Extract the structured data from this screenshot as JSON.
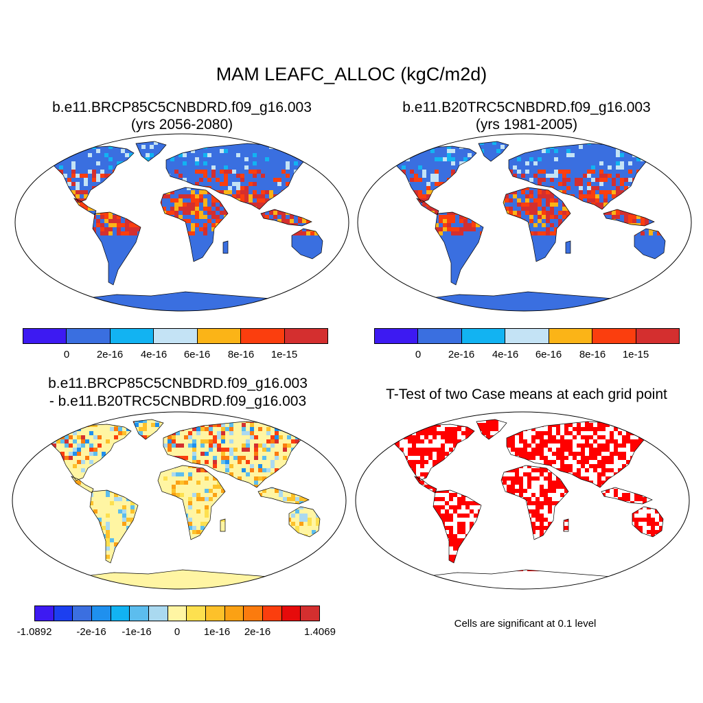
{
  "figure": {
    "title": "MAM LEAFC_ALLOC (kgC/m2d)"
  },
  "panels": {
    "top_left": {
      "title_line1": "b.e11.BRCP85C5CNBDRD.f09_g16.003",
      "title_line2": "(yrs 2056-2080)"
    },
    "top_right": {
      "title_line1": "b.e11.B20TRC5CNBDRD.f09_g16.003",
      "title_line2": "(yrs 1981-2005)"
    },
    "bottom_left": {
      "title_line1": "b.e11.BRCP85C5CNBDRD.f09_g16.003",
      "title_line2": "- b.e11.B20TRC5CNBDRD.f09_g16.003"
    },
    "bottom_right": {
      "title": "T-Test of two Case means at each grid point",
      "note": "Cells are significant at 0.1 level"
    }
  },
  "colorbars": {
    "absolute": {
      "colors": [
        "#3d1af2",
        "#3a6fe0",
        "#12b3f2",
        "#c4e3f5",
        "#fbb417",
        "#fb3e0e",
        "#d42f2f"
      ],
      "labels": [
        "0",
        "2e-16",
        "4e-16",
        "6e-16",
        "8e-16",
        "1e-15"
      ]
    },
    "difference": {
      "colors": [
        "#3d1af2",
        "#1c3ff0",
        "#3b6fe0",
        "#1f90ee",
        "#12b3f2",
        "#5cbdee",
        "#aad9f0",
        "#fff5a3",
        "#fde04f",
        "#fdc12a",
        "#fba114",
        "#fb7b0e",
        "#fb3e0e",
        "#e60b0b",
        "#d42f2f"
      ],
      "labels": [
        "-1.0892",
        "-2e-16",
        "-1e-16",
        "0",
        "1e-16",
        "2e-16",
        "1.4069"
      ]
    }
  },
  "map_colors": {
    "ocean": "#ffffff",
    "land_base": "#3a6fe0",
    "tropics": "#d42f2f",
    "warm": "#fb3e0e",
    "orange": "#fbb417",
    "light": "#c4e3f5",
    "cyan": "#12b3f2",
    "diff_base": "#fff5a3",
    "significant": "#ff0000"
  }
}
